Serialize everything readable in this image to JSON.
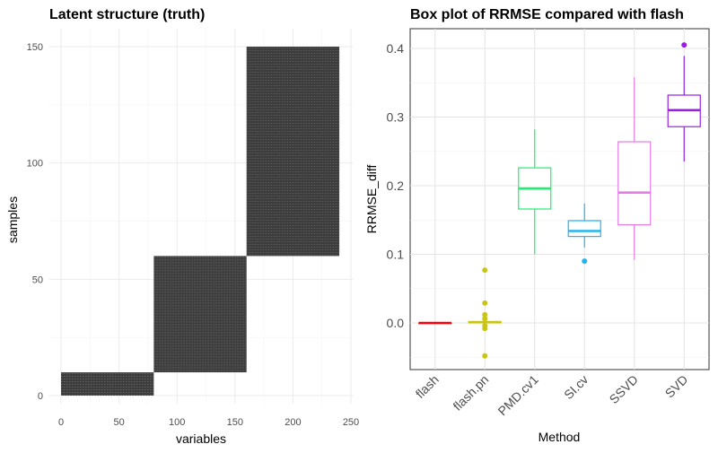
{
  "chart_data": [
    {
      "type": "heatmap",
      "title": "Latent structure (truth)",
      "xlabel": "variables",
      "ylabel": "samples",
      "xlim": [
        0,
        250
      ],
      "ylim": [
        0,
        150
      ],
      "xticks": [
        "0",
        "50",
        "100",
        "150",
        "200",
        "250"
      ],
      "yticks": [
        "0",
        "50",
        "100",
        "150"
      ],
      "blocks": [
        {
          "x": [
            0,
            80
          ],
          "y": [
            0,
            10
          ]
        },
        {
          "x": [
            80,
            160
          ],
          "y": [
            10,
            60
          ]
        },
        {
          "x": [
            160,
            240
          ],
          "y": [
            60,
            150
          ]
        }
      ],
      "grid": true
    },
    {
      "type": "box",
      "title": "Box plot of RRMSE compared with flash",
      "xlabel": "Method",
      "ylabel": "RRMSE_diff",
      "ylim": [
        -0.07,
        0.43
      ],
      "yticks": [
        "0.0",
        "0.1",
        "0.2",
        "0.3",
        "0.4"
      ],
      "grid": true,
      "series": [
        {
          "name": "flash",
          "color": "#f8000d",
          "min": 0.0,
          "q1": 0.0,
          "median": 0.0,
          "q3": 0.0,
          "max": 0.0,
          "outliers": []
        },
        {
          "name": "flash.pn",
          "color": "#c9c41a",
          "min": 0.0,
          "q1": 0.0,
          "median": 0.001,
          "q3": 0.002,
          "max": 0.004,
          "outliers": [
            0.077,
            0.029,
            0.012,
            0.006,
            -0.004,
            -0.008,
            -0.048
          ]
        },
        {
          "name": "PMD.cv1",
          "color": "#1ff06e",
          "min": 0.1,
          "q1": 0.166,
          "median": 0.196,
          "q3": 0.226,
          "max": 0.282,
          "outliers": []
        },
        {
          "name": "SI.cv",
          "color": "#21b5f0",
          "min": 0.11,
          "q1": 0.126,
          "median": 0.134,
          "q3": 0.149,
          "max": 0.174,
          "outliers": [
            0.09
          ]
        },
        {
          "name": "SSVD",
          "color": "#e57ce8",
          "min": 0.092,
          "q1": 0.143,
          "median": 0.19,
          "q3": 0.264,
          "max": 0.358,
          "outliers": []
        },
        {
          "name": "SVD",
          "color": "#9a1fe0",
          "min": 0.235,
          "q1": 0.286,
          "median": 0.31,
          "q3": 0.332,
          "max": 0.389,
          "outliers": [
            0.405
          ]
        }
      ]
    }
  ]
}
